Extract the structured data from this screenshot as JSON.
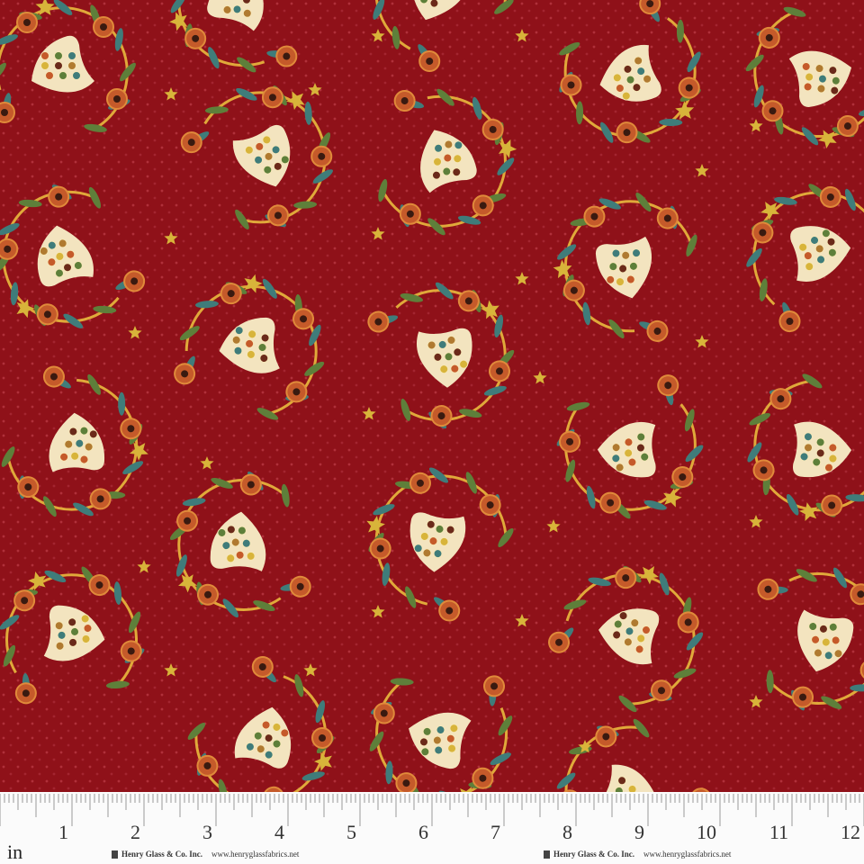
{
  "fabric": {
    "colors": {
      "background": "#8f1119",
      "dots": "#b0303a",
      "vine": "#e0a93a",
      "leaf_green": "#5e7f3a",
      "leaf_teal": "#3f7c7a",
      "star": "#d8b43a",
      "hen": "#f3e4bf",
      "flower": "#c55a2a"
    }
  },
  "ruler": {
    "unit": "in",
    "labels": [
      "1",
      "2",
      "3",
      "4",
      "5",
      "6",
      "7",
      "8",
      "9",
      "10",
      "11",
      "12"
    ],
    "brand_left": {
      "name": "Henry Glass & Co. Inc.",
      "url": "www.henryglassfabrics.net"
    },
    "brand_right": {
      "name": "Henry Glass & Co. Inc.",
      "url": "www.henryglassfabrics.net"
    }
  }
}
